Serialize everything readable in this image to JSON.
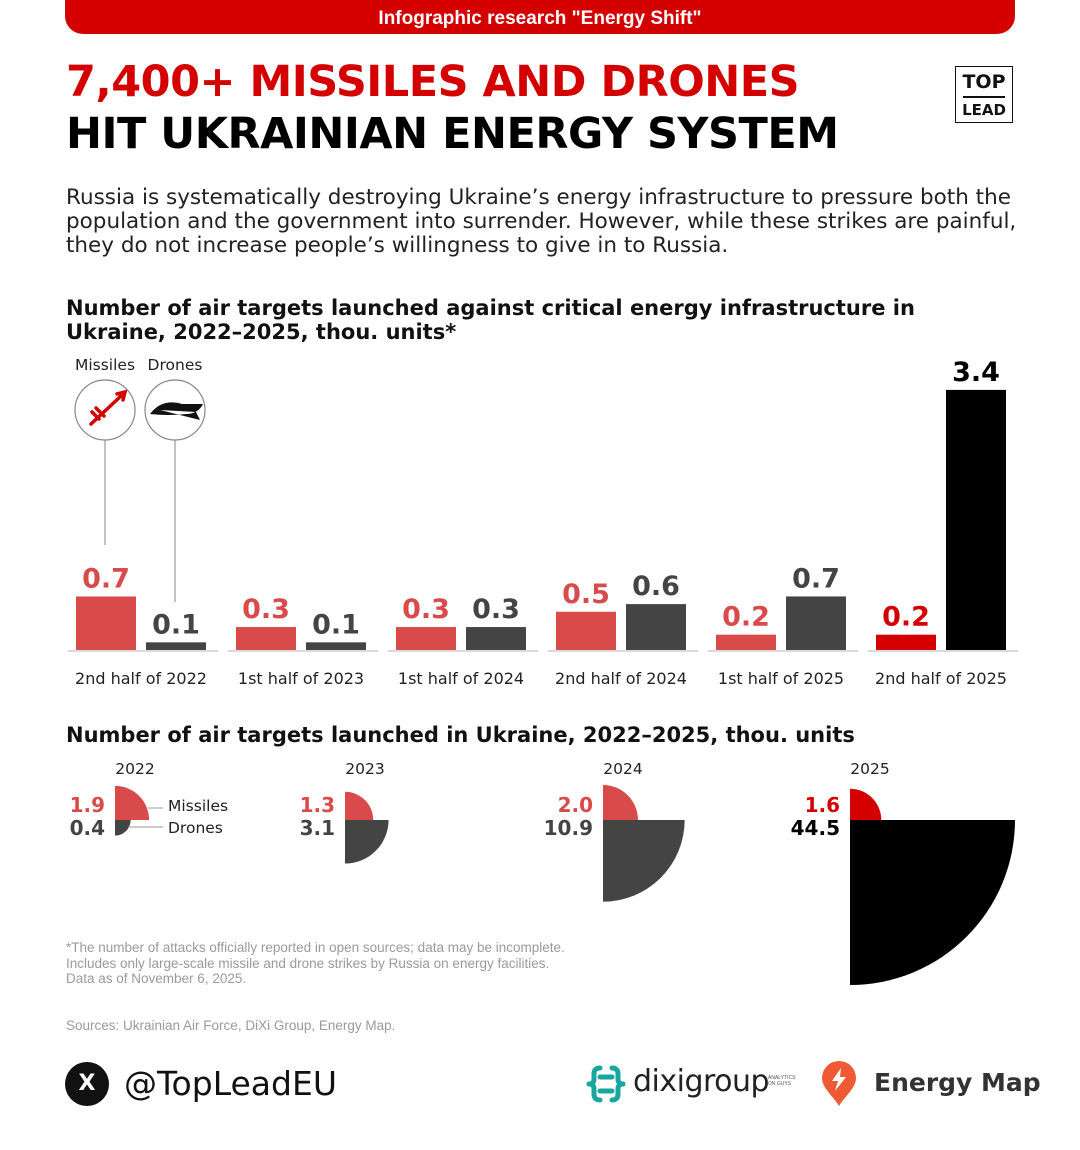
{
  "banner": "Infographic research \"Energy Shift\"",
  "headline": {
    "line1": "7,400+ MISSILES AND DRONES",
    "line2": "HIT UKRAINIAN ENERGY SYSTEM"
  },
  "logo": {
    "top": "TOP",
    "bottom": "LEAD"
  },
  "intro": "Russia is systematically destroying Ukraine’s energy infrastructure to pressure both the population and the government into surrender. However, while these strikes are painful, they do not increase people’s willingness to give in to Russia.",
  "colors": {
    "missiles": "#d94a4a",
    "drones": "#444444",
    "missiles_2025": "#d40000",
    "drones_2025": "#000000",
    "brand_red": "#d40000"
  },
  "chart_data": [
    {
      "type": "bar",
      "title": "Number of air targets launched against critical energy infrastructure in Ukraine, 2022–2025, thou. units*",
      "legend": [
        "Missiles",
        "Drones"
      ],
      "legend_icons": [
        "missile-icon",
        "drone-icon"
      ],
      "categories": [
        "2nd half of 2022",
        "1st half of 2023",
        "1st half of 2024",
        "2nd half of 2024",
        "1st half of 2025",
        "2nd half of 2025"
      ],
      "series": [
        {
          "name": "Missiles",
          "values": [
            0.7,
            0.3,
            0.3,
            0.5,
            0.2,
            0.2
          ]
        },
        {
          "name": "Drones",
          "values": [
            0.1,
            0.1,
            0.3,
            0.6,
            0.7,
            3.4
          ]
        }
      ],
      "value_labels": {
        "Missiles": [
          "0.7",
          "0.3",
          "0.3",
          "0.5",
          "0.2",
          "0.2"
        ],
        "Drones": [
          "0.1",
          "0.1",
          "0.3",
          "0.6",
          "0.7",
          "3.4"
        ]
      }
    },
    {
      "type": "pie",
      "title": "Number of air targets launched in Ukraine, 2022–2025, thou. units",
      "legend": [
        "Missiles",
        "Drones"
      ],
      "categories": [
        "2022",
        "2023",
        "2024",
        "2025"
      ],
      "series": [
        {
          "name": "Missiles",
          "values": [
            1.9,
            1.3,
            2.0,
            1.6
          ]
        },
        {
          "name": "Drones",
          "values": [
            0.4,
            3.1,
            10.9,
            44.5
          ]
        }
      ],
      "value_labels": {
        "Missiles": [
          "1.9",
          "1.3",
          "2.0",
          "1.6"
        ],
        "Drones": [
          "0.4",
          "3.1",
          "10.9",
          "44.5"
        ]
      }
    }
  ],
  "footnote": [
    "*The number of attacks officially reported in open sources; data may be incomplete.",
    "Includes only large-scale missile and drone strikes by Russia on energy facilities.",
    "Data as of November 6, 2025."
  ],
  "sources": "Sources: Ukrainian Air Force, DiXi Group, Energy Map.",
  "footer": {
    "handle": "@TopLeadEU",
    "x_logo": "X",
    "dixi_name": "dixigroup",
    "dixi_tagline": "ANALYTICS ON GUYS",
    "energy_map_name": "Energy Map"
  }
}
